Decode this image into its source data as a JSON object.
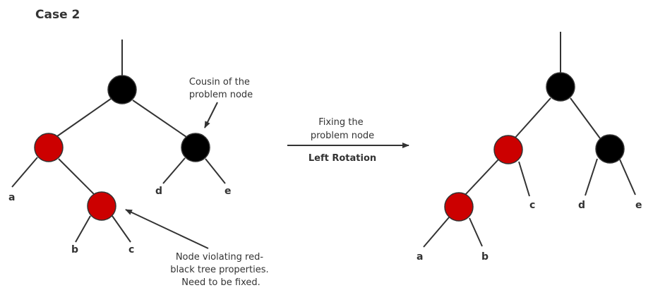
{
  "title": "Case 2",
  "colors": {
    "red_node": "#cc0000",
    "black_node": "#000000",
    "stroke": "#333333"
  },
  "before": {
    "node_colors": {
      "root": "black",
      "left": "red",
      "cousin": "black",
      "problem": "red"
    },
    "leaf_labels": {
      "a": "a",
      "b": "b",
      "c": "c",
      "d": "d",
      "e": "e"
    },
    "cousin_note": [
      "Cousin of the",
      "problem node"
    ],
    "problem_note": [
      "Node violating red-",
      "black tree properties.",
      "Need to be fixed."
    ]
  },
  "transition": {
    "caption": [
      "Fixing the",
      "problem node"
    ],
    "operation": "Left Rotation"
  },
  "after": {
    "node_colors": {
      "root": "black",
      "left": "red",
      "right": "black",
      "leftleft": "red"
    },
    "leaf_labels": {
      "a": "a",
      "b": "b",
      "c": "c",
      "d": "d",
      "e": "e"
    }
  }
}
